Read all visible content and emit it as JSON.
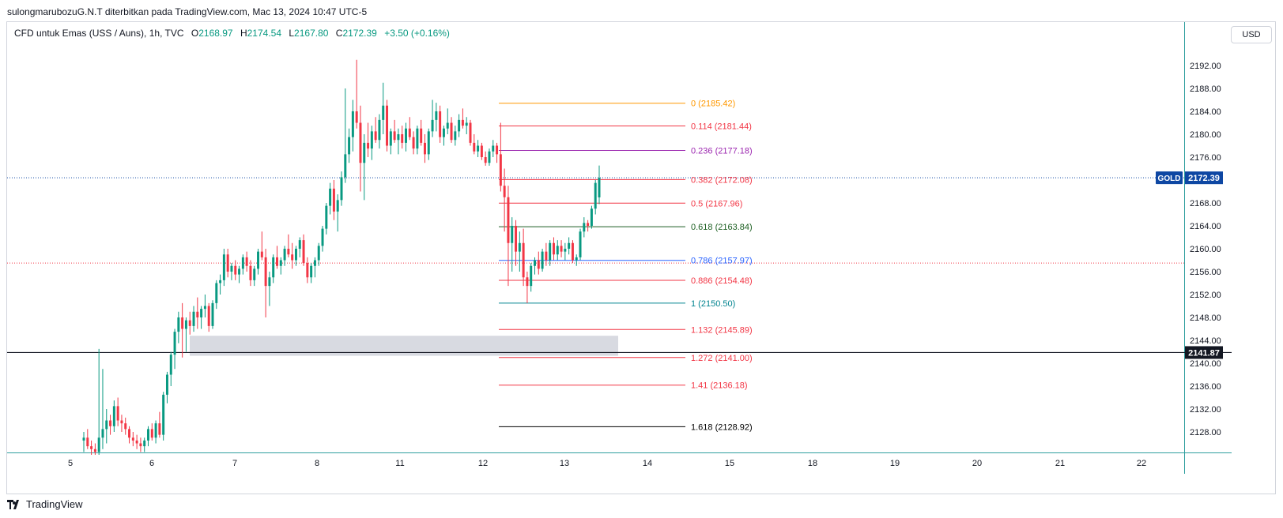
{
  "header": {
    "attribution": "sulongmarubozuG.N.T diterbitkan pada TradingView.com, Mac 13, 2024 10:47 UTC-5"
  },
  "legend": {
    "symbol": "CFD untuk Emas (USS / Auns), 1h, TVC",
    "open_label": "O",
    "open": "2168.97",
    "high_label": "H",
    "high": "2174.54",
    "low_label": "L",
    "low": "2167.80",
    "close_label": "C",
    "close": "2172.39",
    "change": "+3.50 (+0.16%)"
  },
  "currency_button": "USD",
  "footer": {
    "brand": "TradingView"
  },
  "colors": {
    "up_candle": "#089981",
    "down_candle": "#f23645",
    "price_tag": "#0e47a3",
    "bg": "#ffffff"
  },
  "chart_data": {
    "type": "candlestick",
    "symbol": "GOLD",
    "timeframe": "1h",
    "x_ticks": [
      "5",
      "6",
      "7",
      "8",
      "11",
      "12",
      "13",
      "14",
      "15",
      "18",
      "19",
      "20",
      "21",
      "22"
    ],
    "y_ticks": [
      "2192.00",
      "2188.00",
      "2184.00",
      "2180.00",
      "2176.00",
      "2172.00",
      "2168.00",
      "2164.00",
      "2160.00",
      "2156.00",
      "2152.00",
      "2148.00",
      "2144.00",
      "2140.00",
      "2136.00",
      "2132.00",
      "2128.00"
    ],
    "ylim": [
      2124.0,
      2194.5
    ],
    "last_price": {
      "label": "GOLD",
      "value": "2172.39",
      "y": 2172.39
    },
    "horizontal_line": {
      "value": "2141.87",
      "y": 2141.87
    },
    "red_dotted_level": 2157.5,
    "fibonacci": [
      {
        "label": "0 (2185.42)",
        "value": 2185.42,
        "color": "#ff9800"
      },
      {
        "label": "0.114 (2181.44)",
        "value": 2181.44,
        "color": "#f23645"
      },
      {
        "label": "0.236 (2177.18)",
        "value": 2177.18,
        "color": "#9c27b0"
      },
      {
        "label": "0.382 (2172.08)",
        "value": 2172.08,
        "color": "#f23645"
      },
      {
        "label": "0.5 (2167.96)",
        "value": 2167.96,
        "color": "#f23645"
      },
      {
        "label": "0.618 (2163.84)",
        "value": 2163.84,
        "color": "#1b5e20"
      },
      {
        "label": "0.786 (2157.97)",
        "value": 2157.97,
        "color": "#2962ff"
      },
      {
        "label": "0.886 (2154.48)",
        "value": 2154.48,
        "color": "#f23645"
      },
      {
        "label": "1 (2150.50)",
        "value": 2150.5,
        "color": "#00838f"
      },
      {
        "label": "1.132 (2145.89)",
        "value": 2145.89,
        "color": "#f23645"
      },
      {
        "label": "1.272 (2141.00)",
        "value": 2141.0,
        "color": "#f23645"
      },
      {
        "label": "1.41 (2136.18)",
        "value": 2136.18,
        "color": "#f23645"
      },
      {
        "label": "1.618 (2128.92)",
        "value": 2128.92,
        "color": "#000000"
      }
    ],
    "zone": {
      "y_top": 2144.8,
      "y_bottom": 2141.3,
      "from": "6",
      "to": "13"
    },
    "candles": [
      [
        2126.5,
        2128.0,
        2124.5,
        2127.0
      ],
      [
        2127.0,
        2128.5,
        2125.0,
        2125.5
      ],
      [
        2125.5,
        2126.5,
        2124.0,
        2125.0
      ],
      [
        2125.0,
        2126.0,
        2124.0,
        2124.5
      ],
      [
        2124.5,
        2142.5,
        2124.0,
        2127.0
      ],
      [
        2127.0,
        2139.0,
        2125.0,
        2128.5
      ],
      [
        2128.5,
        2132.0,
        2126.0,
        2130.0
      ],
      [
        2130.0,
        2131.0,
        2127.5,
        2129.0
      ],
      [
        2129.0,
        2133.5,
        2128.0,
        2132.5
      ],
      [
        2132.5,
        2134.0,
        2129.0,
        2130.0
      ],
      [
        2130.0,
        2131.0,
        2128.0,
        2129.5
      ],
      [
        2129.5,
        2130.5,
        2127.5,
        2128.5
      ],
      [
        2128.5,
        2129.0,
        2126.0,
        2127.0
      ],
      [
        2127.0,
        2128.0,
        2125.5,
        2126.5
      ],
      [
        2126.5,
        2127.5,
        2125.0,
        2126.0
      ],
      [
        2126.0,
        2127.0,
        2124.5,
        2125.5
      ],
      [
        2125.5,
        2127.0,
        2124.5,
        2126.5
      ],
      [
        2126.5,
        2129.0,
        2125.5,
        2128.5
      ],
      [
        2128.5,
        2129.5,
        2126.5,
        2127.0
      ],
      [
        2127.0,
        2130.0,
        2126.0,
        2129.5
      ],
      [
        2129.5,
        2131.5,
        2127.0,
        2127.5
      ],
      [
        2127.5,
        2135.0,
        2126.5,
        2134.5
      ],
      [
        2134.5,
        2138.5,
        2133.0,
        2138.0
      ],
      [
        2138.0,
        2142.0,
        2136.0,
        2141.5
      ],
      [
        2141.5,
        2146.0,
        2139.0,
        2145.5
      ],
      [
        2145.5,
        2149.0,
        2143.5,
        2148.0
      ],
      [
        2148.0,
        2150.5,
        2141.0,
        2146.0
      ],
      [
        2146.0,
        2148.0,
        2142.0,
        2147.5
      ],
      [
        2147.5,
        2149.0,
        2145.0,
        2146.5
      ],
      [
        2146.5,
        2150.0,
        2145.5,
        2149.0
      ],
      [
        2149.0,
        2151.5,
        2146.0,
        2148.0
      ],
      [
        2148.0,
        2150.0,
        2146.0,
        2149.5
      ],
      [
        2149.5,
        2152.0,
        2148.0,
        2150.0
      ],
      [
        2150.0,
        2150.5,
        2145.5,
        2146.5
      ],
      [
        2146.5,
        2151.0,
        2146.0,
        2150.5
      ],
      [
        2150.5,
        2154.5,
        2149.5,
        2154.0
      ],
      [
        2154.0,
        2155.5,
        2152.0,
        2154.5
      ],
      [
        2154.5,
        2160.0,
        2153.5,
        2159.0
      ],
      [
        2159.0,
        2160.0,
        2155.0,
        2156.0
      ],
      [
        2156.0,
        2157.5,
        2154.5,
        2157.0
      ],
      [
        2157.0,
        2158.0,
        2154.5,
        2155.5
      ],
      [
        2155.5,
        2157.0,
        2154.0,
        2156.5
      ],
      [
        2156.5,
        2159.0,
        2155.5,
        2158.5
      ],
      [
        2158.5,
        2159.5,
        2156.0,
        2157.0
      ],
      [
        2157.0,
        2158.0,
        2153.5,
        2154.5
      ],
      [
        2154.5,
        2157.0,
        2153.5,
        2156.5
      ],
      [
        2156.5,
        2160.0,
        2155.5,
        2159.5
      ],
      [
        2159.5,
        2163.0,
        2158.0,
        2158.5
      ],
      [
        2158.5,
        2160.0,
        2148.0,
        2153.5
      ],
      [
        2153.5,
        2156.0,
        2150.0,
        2155.0
      ],
      [
        2155.0,
        2159.0,
        2154.0,
        2158.5
      ],
      [
        2158.5,
        2160.5,
        2156.5,
        2157.0
      ],
      [
        2157.0,
        2158.5,
        2155.5,
        2158.0
      ],
      [
        2158.0,
        2160.5,
        2157.0,
        2160.0
      ],
      [
        2160.0,
        2162.5,
        2158.5,
        2159.0
      ],
      [
        2159.0,
        2161.0,
        2156.5,
        2158.0
      ],
      [
        2158.0,
        2160.5,
        2157.0,
        2160.0
      ],
      [
        2160.0,
        2162.0,
        2158.5,
        2161.5
      ],
      [
        2161.5,
        2162.5,
        2157.0,
        2157.5
      ],
      [
        2157.5,
        2158.5,
        2154.0,
        2155.0
      ],
      [
        2155.0,
        2157.5,
        2154.0,
        2157.0
      ],
      [
        2157.0,
        2158.5,
        2155.0,
        2158.0
      ],
      [
        2158.0,
        2161.0,
        2157.0,
        2160.5
      ],
      [
        2160.5,
        2164.0,
        2159.5,
        2163.5
      ],
      [
        2163.5,
        2168.0,
        2162.5,
        2167.5
      ],
      [
        2167.5,
        2171.5,
        2166.0,
        2170.5
      ],
      [
        2170.5,
        2172.0,
        2165.0,
        2166.5
      ],
      [
        2166.5,
        2169.5,
        2163.0,
        2168.5
      ],
      [
        2168.5,
        2173.5,
        2167.5,
        2172.5
      ],
      [
        2172.5,
        2188.0,
        2171.5,
        2176.5
      ],
      [
        2176.5,
        2181.0,
        2175.0,
        2179.5
      ],
      [
        2179.5,
        2186.0,
        2177.0,
        2184.0
      ],
      [
        2184.0,
        2193.0,
        2181.0,
        2182.0
      ],
      [
        2182.0,
        2185.0,
        2170.0,
        2175.0
      ],
      [
        2175.0,
        2180.0,
        2168.5,
        2178.5
      ],
      [
        2178.5,
        2182.0,
        2176.0,
        2177.5
      ],
      [
        2177.5,
        2181.5,
        2175.5,
        2180.5
      ],
      [
        2180.5,
        2183.0,
        2178.5,
        2179.0
      ],
      [
        2179.0,
        2183.5,
        2177.5,
        2182.5
      ],
      [
        2182.5,
        2189.0,
        2180.0,
        2185.0
      ],
      [
        2185.0,
        2186.0,
        2177.0,
        2178.0
      ],
      [
        2178.0,
        2181.0,
        2176.5,
        2180.5
      ],
      [
        2180.5,
        2182.5,
        2178.5,
        2179.0
      ],
      [
        2179.0,
        2181.0,
        2176.5,
        2180.0
      ],
      [
        2180.0,
        2181.5,
        2177.5,
        2178.5
      ],
      [
        2178.5,
        2182.0,
        2177.0,
        2181.0
      ],
      [
        2181.0,
        2183.0,
        2179.0,
        2179.5
      ],
      [
        2179.5,
        2180.5,
        2176.5,
        2177.5
      ],
      [
        2177.5,
        2181.5,
        2176.5,
        2181.0
      ],
      [
        2181.0,
        2182.5,
        2178.0,
        2178.5
      ],
      [
        2178.5,
        2180.0,
        2175.0,
        2176.5
      ],
      [
        2176.5,
        2181.0,
        2175.5,
        2180.5
      ],
      [
        2180.5,
        2186.0,
        2179.5,
        2182.5
      ],
      [
        2182.5,
        2185.5,
        2180.5,
        2184.0
      ],
      [
        2184.0,
        2185.0,
        2178.5,
        2179.5
      ],
      [
        2179.5,
        2181.5,
        2178.0,
        2181.0
      ],
      [
        2181.0,
        2184.5,
        2180.0,
        2182.0
      ],
      [
        2182.0,
        2183.0,
        2178.5,
        2179.0
      ],
      [
        2179.0,
        2181.5,
        2178.0,
        2180.5
      ],
      [
        2180.5,
        2183.5,
        2179.5,
        2182.5
      ],
      [
        2182.5,
        2184.5,
        2181.0,
        2181.5
      ],
      [
        2181.5,
        2183.0,
        2180.0,
        2182.0
      ],
      [
        2182.0,
        2182.5,
        2178.0,
        2178.5
      ],
      [
        2178.5,
        2180.0,
        2176.5,
        2177.0
      ],
      [
        2177.0,
        2179.0,
        2176.0,
        2178.0
      ],
      [
        2178.0,
        2178.5,
        2175.5,
        2176.0
      ],
      [
        2176.0,
        2177.0,
        2174.5,
        2175.0
      ],
      [
        2175.0,
        2177.5,
        2174.5,
        2177.0
      ],
      [
        2177.0,
        2179.0,
        2176.0,
        2178.0
      ],
      [
        2178.0,
        2178.5,
        2175.0,
        2176.5
      ],
      [
        2176.5,
        2182.0,
        2170.0,
        2171.0
      ],
      [
        2171.0,
        2174.0,
        2163.0,
        2169.0
      ],
      [
        2169.0,
        2171.0,
        2153.5,
        2161.0
      ],
      [
        2161.0,
        2165.5,
        2156.0,
        2164.0
      ],
      [
        2164.0,
        2165.0,
        2157.0,
        2159.5
      ],
      [
        2159.5,
        2163.0,
        2156.0,
        2161.0
      ],
      [
        2161.0,
        2163.5,
        2153.5,
        2155.0
      ],
      [
        2155.0,
        2156.0,
        2150.5,
        2153.5
      ],
      [
        2153.5,
        2157.5,
        2152.5,
        2157.0
      ],
      [
        2157.0,
        2158.5,
        2155.5,
        2158.0
      ],
      [
        2158.0,
        2159.5,
        2155.5,
        2156.5
      ],
      [
        2156.5,
        2160.0,
        2156.0,
        2159.5
      ],
      [
        2159.5,
        2161.0,
        2157.0,
        2158.0
      ],
      [
        2158.0,
        2161.5,
        2157.0,
        2161.0
      ],
      [
        2161.0,
        2162.0,
        2158.0,
        2159.0
      ],
      [
        2159.0,
        2161.5,
        2158.0,
        2160.5
      ],
      [
        2160.5,
        2161.5,
        2158.5,
        2159.5
      ],
      [
        2159.5,
        2161.0,
        2158.0,
        2160.0
      ],
      [
        2160.0,
        2162.0,
        2159.0,
        2161.0
      ],
      [
        2161.0,
        2161.5,
        2157.5,
        2158.0
      ],
      [
        2158.0,
        2159.0,
        2157.0,
        2158.5
      ],
      [
        2158.5,
        2163.5,
        2158.0,
        2163.0
      ],
      [
        2163.0,
        2165.5,
        2162.0,
        2164.5
      ],
      [
        2164.5,
        2165.0,
        2163.0,
        2164.0
      ],
      [
        2164.0,
        2167.5,
        2163.5,
        2167.0
      ],
      [
        2167.0,
        2172.0,
        2166.0,
        2171.5
      ],
      [
        2168.97,
        2174.54,
        2167.8,
        2172.39
      ]
    ]
  }
}
